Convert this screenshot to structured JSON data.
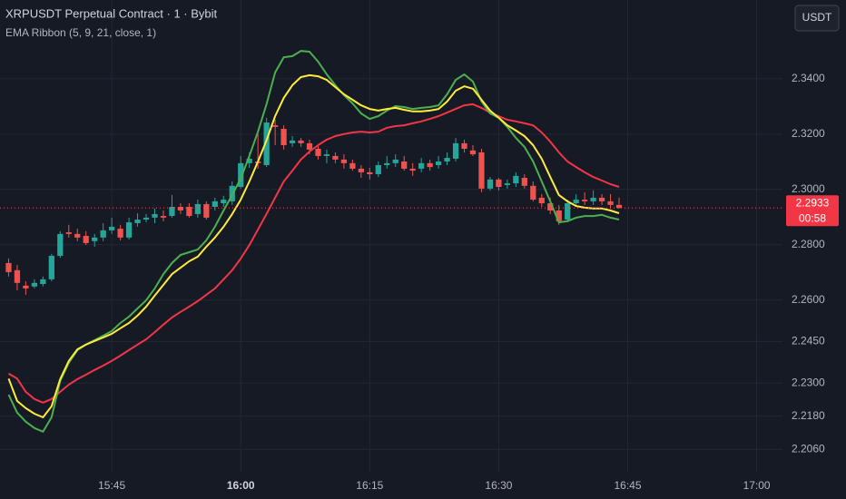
{
  "chart_data": {
    "type": "candlestick",
    "title": "XRPUSDT Perpetual Contract · 1 · Bybit",
    "subtitle": "EMA Ribbon (5, 9, 21, close, 1)",
    "button": "USDT",
    "last_price": 2.2933,
    "countdown": "00:58",
    "up_color": "#26a69a",
    "down_color": "#ef5350",
    "grid": true,
    "bold_xtick_index": 1,
    "x": [
      "15:33",
      "15:34",
      "15:35",
      "15:36",
      "15:37",
      "15:38",
      "15:39",
      "15:40",
      "15:41",
      "15:42",
      "15:43",
      "15:44",
      "15:45",
      "15:46",
      "15:47",
      "15:48",
      "15:49",
      "15:50",
      "15:51",
      "15:52",
      "15:53",
      "15:54",
      "15:55",
      "15:56",
      "15:57",
      "15:58",
      "15:59",
      "16:00",
      "16:01",
      "16:02",
      "16:03",
      "16:04",
      "16:05",
      "16:06",
      "16:07",
      "16:08",
      "16:09",
      "16:10",
      "16:11",
      "16:12",
      "16:13",
      "16:14",
      "16:15",
      "16:16",
      "16:17",
      "16:18",
      "16:19",
      "16:20",
      "16:21",
      "16:22",
      "16:23",
      "16:24",
      "16:25",
      "16:26",
      "16:27",
      "16:28",
      "16:29",
      "16:30",
      "16:31",
      "16:32",
      "16:33",
      "16:34",
      "16:35",
      "16:36",
      "16:37",
      "16:38",
      "16:39",
      "16:40",
      "16:41",
      "16:42",
      "16:43",
      "16:44"
    ],
    "open": [
      2.2734,
      2.2708,
      2.2652,
      2.2649,
      2.2658,
      2.2675,
      2.276,
      2.2845,
      2.2839,
      2.2832,
      2.2813,
      2.2826,
      2.2852,
      2.2858,
      2.2826,
      2.2878,
      2.2891,
      2.2898,
      2.2904,
      2.2904,
      2.2937,
      2.2937,
      2.2911,
      2.2947,
      2.2937,
      2.295,
      2.2957,
      2.3009,
      2.3095,
      2.3101,
      2.3088,
      2.3232,
      2.3219,
      2.3167,
      2.3177,
      2.3167,
      2.3147,
      2.3121,
      2.3121,
      2.3108,
      2.3095,
      2.3075,
      2.3062,
      2.3055,
      2.3088,
      2.3095,
      2.3101,
      2.3075,
      2.3075,
      2.3095,
      2.3088,
      2.3101,
      2.3111,
      2.3167,
      2.3141,
      2.3134,
      2.3003,
      2.3036,
      2.3016,
      2.3022,
      2.3042,
      2.3013,
      2.297,
      2.295,
      2.2924,
      2.2891,
      2.295,
      2.2963,
      2.2957,
      2.297,
      2.2957,
      2.2944
    ],
    "high": [
      2.275,
      2.2727,
      2.2668,
      2.2675,
      2.2685,
      2.2767,
      2.2849,
      2.2872,
      2.2858,
      2.2849,
      2.2839,
      2.2878,
      2.2898,
      2.2872,
      2.2898,
      2.2914,
      2.2911,
      2.2931,
      2.2924,
      2.298,
      2.295,
      2.295,
      2.2963,
      2.2957,
      2.297,
      2.2977,
      2.3029,
      2.3121,
      2.3134,
      2.32,
      2.3259,
      2.3252,
      2.3232,
      2.3193,
      2.3186,
      2.318,
      2.316,
      2.3144,
      2.3134,
      2.3127,
      2.3108,
      2.3088,
      2.3078,
      2.3101,
      2.3121,
      2.3127,
      2.3121,
      2.3095,
      2.3114,
      2.3108,
      2.3121,
      2.3134,
      2.3186,
      2.318,
      2.316,
      2.3147,
      2.3045,
      2.3042,
      2.3036,
      2.3062,
      2.3055,
      2.3029,
      2.2983,
      2.297,
      2.2944,
      2.2963,
      2.2983,
      2.299,
      2.2996,
      2.2983,
      2.2983,
      2.297
    ],
    "low": [
      2.2685,
      2.2635,
      2.2619,
      2.2642,
      2.2649,
      2.2668,
      2.2753,
      2.2826,
      2.2813,
      2.2799,
      2.2793,
      2.2813,
      2.2839,
      2.2816,
      2.2819,
      2.2865,
      2.2881,
      2.2878,
      2.2885,
      2.2898,
      2.2911,
      2.2898,
      2.2898,
      2.2891,
      2.2924,
      2.2937,
      2.2944,
      2.3003,
      2.3078,
      2.3075,
      2.3081,
      2.316,
      2.3144,
      2.3154,
      2.3154,
      2.3127,
      2.3108,
      2.3095,
      2.3095,
      2.3075,
      2.3068,
      2.3042,
      2.3036,
      2.3045,
      2.3075,
      2.3081,
      2.3068,
      2.3049,
      2.3062,
      2.3068,
      2.3075,
      2.3088,
      2.3101,
      2.3134,
      2.3121,
      2.299,
      2.2996,
      2.2996,
      2.3003,
      2.3009,
      2.3003,
      2.2957,
      2.2937,
      2.2911,
      2.2872,
      2.2881,
      2.2937,
      2.2944,
      2.2944,
      2.2944,
      2.2931,
      2.2931
    ],
    "close": [
      2.2701,
      2.2662,
      2.2642,
      2.2662,
      2.2675,
      2.276,
      2.2839,
      2.2839,
      2.2826,
      2.2806,
      2.2826,
      2.2852,
      2.2865,
      2.2826,
      2.2881,
      2.2891,
      2.2898,
      2.2911,
      2.2898,
      2.2937,
      2.2924,
      2.2904,
      2.2947,
      2.2898,
      2.2957,
      2.2963,
      2.3013,
      2.3095,
      2.3111,
      2.3095,
      2.3242,
      2.3226,
      2.316,
      2.3177,
      2.3167,
      2.3144,
      2.3121,
      2.3127,
      2.3108,
      2.3095,
      2.3075,
      2.3062,
      2.3055,
      2.3088,
      2.3095,
      2.3108,
      2.3075,
      2.3068,
      2.3095,
      2.3081,
      2.3101,
      2.3114,
      2.3167,
      2.3147,
      2.3127,
      2.3003,
      2.3036,
      2.3009,
      2.3022,
      2.3049,
      2.3013,
      2.2963,
      2.295,
      2.2924,
      2.2885,
      2.295,
      2.2963,
      2.2957,
      2.297,
      2.2957,
      2.2944,
      2.2933
    ],
    "lines": [
      {
        "color": "#f23645",
        "values": [
          2.2334,
          2.2316,
          2.2268,
          2.2242,
          2.2229,
          2.2242,
          2.2268,
          2.2294,
          2.2314,
          2.233,
          2.2347,
          2.2363,
          2.238,
          2.2399,
          2.2419,
          2.2439,
          2.2458,
          2.2484,
          2.2511,
          2.2537,
          2.2557,
          2.2576,
          2.2596,
          2.2619,
          2.2642,
          2.2675,
          2.2708,
          2.275,
          2.2799,
          2.2855,
          2.2911,
          2.297,
          2.3029,
          2.3068,
          2.3108,
          2.3137,
          2.316,
          2.318,
          2.3193,
          2.32,
          2.3206,
          2.3209,
          2.3206,
          2.3209,
          2.3223,
          2.3229,
          2.3232,
          2.3239,
          2.3246,
          2.3255,
          2.3265,
          2.3278,
          2.3291,
          2.3304,
          2.3308,
          2.3295,
          2.3278,
          2.3265,
          2.3252,
          2.3246,
          2.3239,
          2.3232,
          2.3206,
          2.3173,
          2.3134,
          2.3101,
          2.3081,
          2.3062,
          2.3045,
          2.3032,
          2.3019,
          2.3009
        ]
      },
      {
        "color": "#4caf50",
        "values": [
          2.2258,
          2.2193,
          2.216,
          2.2137,
          2.2124,
          2.2176,
          2.2307,
          2.2373,
          2.2419,
          2.2439,
          2.2455,
          2.2471,
          2.2488,
          2.2517,
          2.254,
          2.257,
          2.2599,
          2.2642,
          2.2694,
          2.2734,
          2.2763,
          2.2773,
          2.2783,
          2.2816,
          2.2865,
          2.2924,
          2.298,
          2.3039,
          2.3121,
          2.3209,
          2.3308,
          2.3423,
          2.3478,
          2.3482,
          2.3501,
          2.3498,
          2.3462,
          2.3416,
          2.3377,
          2.3341,
          2.3311,
          2.3275,
          2.3255,
          2.3265,
          2.3285,
          2.3301,
          2.3298,
          2.3291,
          2.3295,
          2.3298,
          2.3304,
          2.3344,
          2.3396,
          2.3416,
          2.339,
          2.3318,
          2.3275,
          2.3259,
          2.3226,
          2.3186,
          2.3154,
          2.3101,
          2.3029,
          2.2957,
          2.2881,
          2.2885,
          2.2898,
          2.2904,
          2.2904,
          2.2908,
          2.2898,
          2.2891
        ]
      },
      {
        "color": "#ffeb3b",
        "values": [
          2.2316,
          2.2235,
          2.2209,
          2.2189,
          2.2176,
          2.2216,
          2.2314,
          2.238,
          2.2422,
          2.2439,
          2.2452,
          2.2465,
          2.2478,
          2.2498,
          2.2517,
          2.2544,
          2.2576,
          2.2616,
          2.2655,
          2.2694,
          2.2717,
          2.274,
          2.2757,
          2.2793,
          2.2826,
          2.2865,
          2.2911,
          2.2963,
          2.3029,
          2.3101,
          2.3177,
          2.3265,
          2.3331,
          2.3377,
          2.3406,
          2.3413,
          2.3409,
          2.3396,
          2.337,
          2.3344,
          2.3324,
          2.3304,
          2.3291,
          2.3285,
          2.3291,
          2.3295,
          2.3288,
          2.3282,
          2.3282,
          2.3285,
          2.3291,
          2.3318,
          2.3357,
          2.3373,
          2.3364,
          2.3324,
          2.3285,
          2.3259,
          2.3232,
          2.3213,
          2.3193,
          2.316,
          2.3111,
          2.3045,
          2.298,
          2.2957,
          2.294,
          2.2934,
          2.2931,
          2.2931,
          2.2924,
          2.2914
        ]
      }
    ],
    "xlim": [
      "15:32",
      "17:03"
    ],
    "xticks": [
      "15:45",
      "16:00",
      "16:15",
      "16:30",
      "16:45",
      "17:00"
    ],
    "ylim": [
      2.1979,
      2.3685
    ],
    "yticks": [
      {
        "value": 2.34,
        "label": "2.3400"
      },
      {
        "value": 2.32,
        "label": "2.3200"
      },
      {
        "value": 2.3,
        "label": "2.3000"
      },
      {
        "value": 2.28,
        "label": "2.2800"
      },
      {
        "value": 2.26,
        "label": "2.2600"
      },
      {
        "value": 2.245,
        "label": "2.2450"
      },
      {
        "value": 2.23,
        "label": "2.2300"
      },
      {
        "value": 2.218,
        "label": "2.2180"
      },
      {
        "value": 2.206,
        "label": "2.2060"
      }
    ]
  }
}
